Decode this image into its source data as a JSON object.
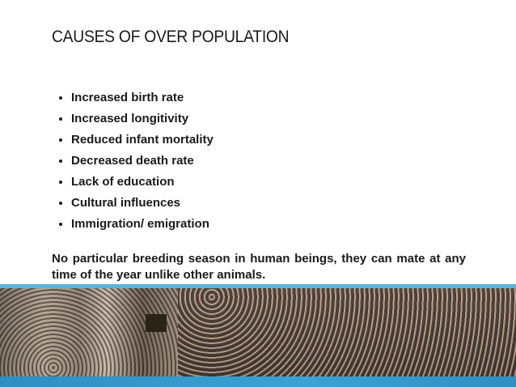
{
  "header": {
    "title": "CAUSES OF OVER POPULATION"
  },
  "bullets": [
    "Increased birth rate",
    "Increased longitivity",
    "Reduced infant mortality",
    "Decreased death rate",
    "Lack of education",
    "Cultural influences",
    "Immigration/ emigration"
  ],
  "paragraph": "No particular breeding season in human beings, they can mate at any time of the year unlike other animals."
}
